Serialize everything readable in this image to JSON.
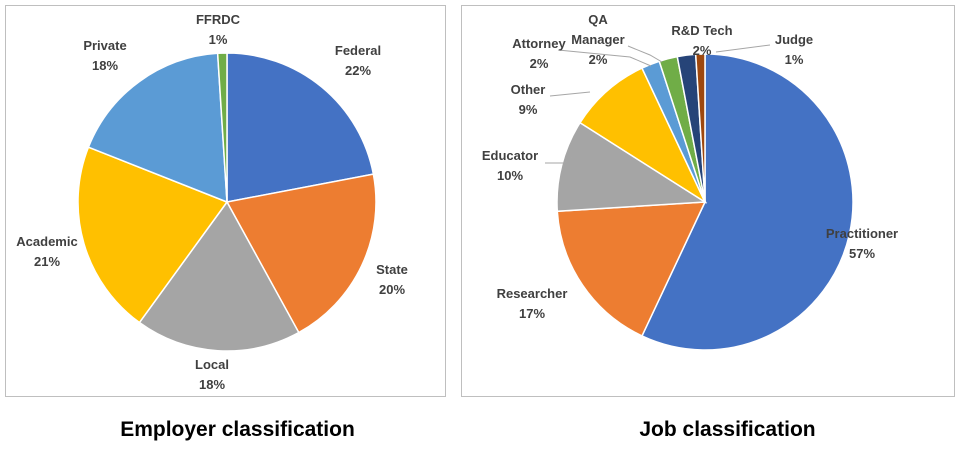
{
  "chart_data": [
    {
      "type": "pie",
      "title": "Employer classification",
      "slices": [
        {
          "label": "Federal",
          "percent_label": "22%",
          "value": 22,
          "color": "#4472C4"
        },
        {
          "label": "State",
          "percent_label": "20%",
          "value": 20,
          "color": "#ED7D31"
        },
        {
          "label": "Local",
          "percent_label": "18%",
          "value": 18,
          "color": "#A5A5A5"
        },
        {
          "label": "Academic",
          "percent_label": "21%",
          "value": 21,
          "color": "#FFC000"
        },
        {
          "label": "Private",
          "percent_label": "18%",
          "value": 18,
          "color": "#5B9BD5"
        },
        {
          "label": "FFRDC",
          "percent_label": "1%",
          "value": 1,
          "color": "#70AD47"
        }
      ]
    },
    {
      "type": "pie",
      "title": "Job classification",
      "slices": [
        {
          "label": "Practitioner",
          "percent_label": "57%",
          "value": 57,
          "color": "#4472C4"
        },
        {
          "label": "Researcher",
          "percent_label": "17%",
          "value": 17,
          "color": "#ED7D31"
        },
        {
          "label": "Educator",
          "percent_label": "10%",
          "value": 10,
          "color": "#A5A5A5"
        },
        {
          "label": "Other",
          "percent_label": "9%",
          "value": 9,
          "color": "#FFC000"
        },
        {
          "label": "Attorney",
          "percent_label": "2%",
          "value": 2,
          "color": "#5B9BD5"
        },
        {
          "label": "QA Manager",
          "percent_label": "2%",
          "value": 2,
          "color": "#70AD47"
        },
        {
          "label": "R&D Tech",
          "percent_label": "2%",
          "value": 2,
          "color": "#264478"
        },
        {
          "label": "Judge",
          "percent_label": "1%",
          "value": 1,
          "color": "#9E480E"
        }
      ]
    }
  ],
  "captions": {
    "left": "Employer classification",
    "right": "Job classification"
  }
}
